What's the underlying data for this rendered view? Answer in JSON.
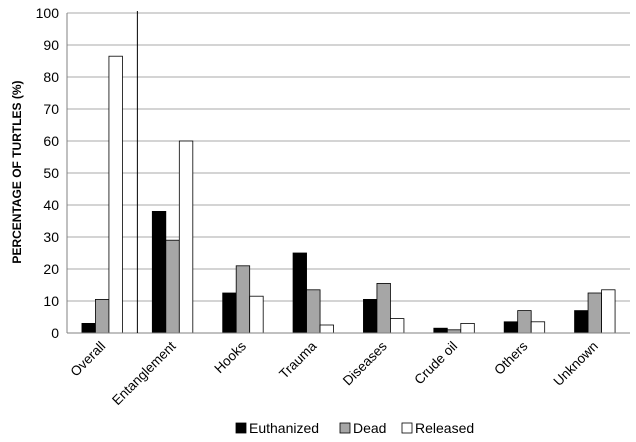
{
  "chart_data": {
    "type": "bar",
    "ylabel": "PERCENTAGE OF TURTLES (%)",
    "ylim": [
      0,
      100
    ],
    "yticks": [
      0,
      10,
      20,
      30,
      40,
      50,
      60,
      70,
      80,
      90,
      100
    ],
    "categories": [
      "Overall",
      "Entanglement",
      "Hooks",
      "Trauma",
      "Diseases",
      "Crude oil",
      "Others",
      "Unknown"
    ],
    "series": [
      {
        "name": "Euthanized",
        "color": "#000000",
        "values": [
          3,
          38,
          12.5,
          25,
          10.5,
          1.5,
          3.5,
          7
        ]
      },
      {
        "name": "Dead",
        "color": "#a6a6a6",
        "values": [
          10.5,
          29,
          21,
          13.5,
          15.5,
          1,
          7,
          12.5
        ]
      },
      {
        "name": "Released",
        "color": "#ffffff",
        "values": [
          86.5,
          60,
          11.5,
          2.5,
          4.5,
          3,
          3.5,
          13.5
        ]
      }
    ],
    "grid": true,
    "legend": "bottom"
  }
}
